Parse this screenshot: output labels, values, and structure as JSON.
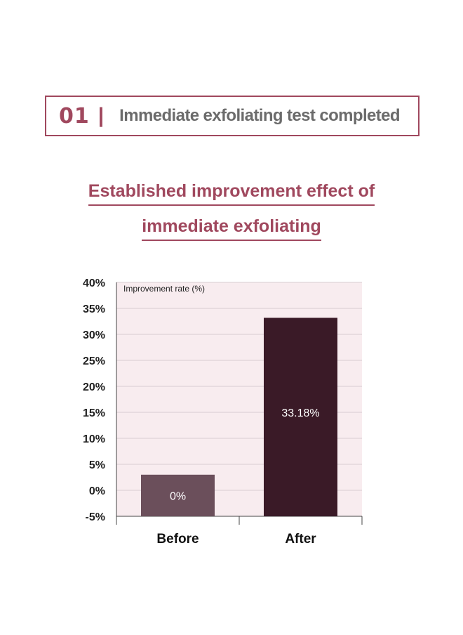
{
  "banner": {
    "number": "01",
    "separator": "|",
    "title": "Immediate exfoliating test completed"
  },
  "heading": {
    "line1": "Established improvement effect of",
    "line2": "immediate exfoliating"
  },
  "colors": {
    "accent": "#a0485e",
    "plot_bg": "#f8ecef",
    "bar_before": "#6b4f5b",
    "bar_after": "#3a1a27"
  },
  "chart_data": {
    "type": "bar",
    "ylabel": "Improvement rate (%)",
    "ylim": [
      -5,
      40
    ],
    "yticks": [
      40,
      35,
      30,
      25,
      20,
      15,
      10,
      5,
      0,
      -5
    ],
    "ytick_labels": [
      "40%",
      "35%",
      "30%",
      "25%",
      "20%",
      "15%",
      "10%",
      "5%",
      "0%",
      "-5%"
    ],
    "categories": [
      "Before",
      "After"
    ],
    "values": [
      0,
      33.18
    ],
    "data_labels": [
      "0%",
      "33.18%"
    ],
    "grid": true
  }
}
